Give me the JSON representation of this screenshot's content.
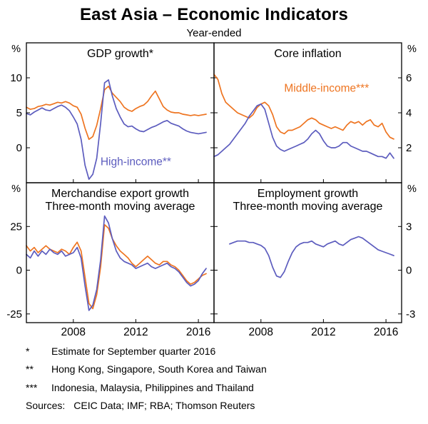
{
  "title": "East Asia – Economic Indicators",
  "subtitle": "Year-ended",
  "footnotes": [
    {
      "marker": "*",
      "text": "Estimate for September quarter 2016"
    },
    {
      "marker": "**",
      "text": "Hong Kong, Singapore, South Korea and Taiwan"
    },
    {
      "marker": "***",
      "text": "Indonesia, Malaysia, Philippines and Thailand"
    }
  ],
  "sources": {
    "label": "Sources:",
    "text": "CEIC Data; IMF; RBA; Thomson Reuters"
  },
  "colors": {
    "middle_income": "#EE7420",
    "high_income": "#5C5CBE",
    "frame": "#000000"
  },
  "chart_data": {
    "type": "line",
    "legend_position": "in-panel-annotations",
    "grid": false,
    "x": [
      2005,
      2005.25,
      2005.5,
      2005.75,
      2006,
      2006.25,
      2006.5,
      2006.75,
      2007,
      2007.25,
      2007.5,
      2007.75,
      2008,
      2008.25,
      2008.5,
      2008.75,
      2009,
      2009.25,
      2009.5,
      2009.75,
      2010,
      2010.25,
      2010.5,
      2010.75,
      2011,
      2011.25,
      2011.5,
      2011.75,
      2012,
      2012.25,
      2012.5,
      2012.75,
      2013,
      2013.25,
      2013.5,
      2013.75,
      2014,
      2014.25,
      2014.5,
      2014.75,
      2015,
      2015.25,
      2015.5,
      2015.75,
      2016,
      2016.25,
      2016.5
    ],
    "xlim": [
      2005,
      2017
    ],
    "xticks": [
      2008,
      2012,
      2016
    ],
    "panels": [
      {
        "title": "GDP growth*",
        "unit": "%",
        "axis_side": "left",
        "ylim": [
          -5,
          15
        ],
        "yticks": [
          0,
          5,
          10
        ],
        "annotation": {
          "label": "High-income**",
          "x": 2012,
          "y": -2.5,
          "color": "#5C5CBE"
        },
        "series": [
          {
            "name": "Middle-income***",
            "color": "#EE7420",
            "values": [
              5.8,
              5.5,
              5.6,
              5.9,
              6.0,
              6.2,
              6.1,
              6.3,
              6.5,
              6.4,
              6.6,
              6.4,
              6.0,
              5.8,
              4.8,
              2.8,
              1.2,
              1.6,
              3.2,
              5.6,
              8.3,
              8.8,
              7.8,
              7.2,
              6.6,
              5.8,
              5.4,
              5.2,
              5.6,
              5.9,
              6.1,
              6.6,
              7.4,
              8.1,
              7.0,
              5.9,
              5.4,
              5.1,
              5.0,
              5.0,
              4.8,
              4.7,
              4.6,
              4.7,
              4.6,
              4.7,
              4.8
            ]
          },
          {
            "name": "High-income**",
            "color": "#5C5CBE",
            "values": [
              4.9,
              4.7,
              5.1,
              5.4,
              5.7,
              5.4,
              5.3,
              5.6,
              5.9,
              6.1,
              5.8,
              5.3,
              4.4,
              3.4,
              1.2,
              -2.5,
              -4.5,
              -3.8,
              -1.5,
              3.5,
              9.3,
              9.7,
              7.4,
              5.6,
              4.4,
              3.4,
              3.0,
              3.1,
              2.7,
              2.4,
              2.3,
              2.6,
              2.9,
              3.1,
              3.4,
              3.7,
              3.9,
              3.5,
              3.3,
              3.1,
              2.7,
              2.4,
              2.2,
              2.1,
              2.0,
              2.1,
              2.2
            ]
          }
        ]
      },
      {
        "title": "Core inflation",
        "unit": "%",
        "axis_side": "right",
        "ylim": [
          0,
          8
        ],
        "yticks": [
          2,
          4,
          6
        ],
        "annotation": {
          "label": "Middle-income***",
          "x": 2012.2,
          "y": 5.2,
          "color": "#EE7420"
        },
        "series": [
          {
            "name": "Middle-income***",
            "color": "#EE7420",
            "values": [
              6.2,
              5.9,
              5.1,
              4.6,
              4.4,
              4.2,
              4.0,
              3.9,
              3.8,
              3.7,
              3.9,
              4.3,
              4.5,
              4.6,
              4.4,
              3.9,
              3.2,
              2.9,
              2.8,
              3.0,
              3.0,
              3.1,
              3.2,
              3.4,
              3.6,
              3.7,
              3.6,
              3.4,
              3.3,
              3.2,
              3.1,
              3.2,
              3.1,
              3.0,
              3.3,
              3.5,
              3.4,
              3.5,
              3.3,
              3.5,
              3.6,
              3.3,
              3.2,
              3.4,
              2.9,
              2.6,
              2.5
            ]
          },
          {
            "name": "High-income**",
            "color": "#5C5CBE",
            "values": [
              1.5,
              1.6,
              1.8,
              2.0,
              2.2,
              2.5,
              2.8,
              3.1,
              3.4,
              3.8,
              4.1,
              4.4,
              4.5,
              4.2,
              3.4,
              2.6,
              2.1,
              1.9,
              1.8,
              1.9,
              2.0,
              2.1,
              2.2,
              2.3,
              2.5,
              2.8,
              3.0,
              2.8,
              2.4,
              2.1,
              2.0,
              2.0,
              2.1,
              2.3,
              2.3,
              2.1,
              2.0,
              1.9,
              1.8,
              1.8,
              1.7,
              1.6,
              1.5,
              1.5,
              1.4,
              1.7,
              1.4
            ]
          }
        ]
      },
      {
        "title": "Merchandise export growth",
        "subtitle": "Three-month moving average",
        "unit": "%",
        "axis_side": "left",
        "ylim": [
          -30,
          50
        ],
        "yticks": [
          -25,
          0,
          25
        ],
        "series": [
          {
            "name": "Middle-income***",
            "color": "#EE7420",
            "values": [
              14,
              11,
              13,
              10,
              12,
              14,
              12,
              11,
              10,
              12,
              11,
              9,
              13,
              16,
              11,
              -4,
              -19,
              -22,
              -14,
              2,
              26,
              24,
              18,
              14,
              11,
              9,
              7,
              4,
              2,
              4,
              6,
              8,
              6,
              4,
              3,
              5,
              5,
              3,
              2,
              0,
              -3,
              -6,
              -8,
              -7,
              -5,
              -3,
              -2
            ]
          },
          {
            "name": "High-income**",
            "color": "#5C5CBE",
            "values": [
              9,
              7,
              11,
              8,
              11,
              9,
              12,
              10,
              9,
              11,
              8,
              9,
              10,
              13,
              7,
              -9,
              -23,
              -20,
              -11,
              6,
              31,
              27,
              18,
              11,
              7,
              5,
              4,
              3,
              1,
              2,
              3,
              4,
              2,
              1,
              2,
              3,
              4,
              2,
              1,
              -1,
              -4,
              -7,
              -9,
              -8,
              -6,
              -2,
              1
            ]
          }
        ]
      },
      {
        "title": "Employment growth",
        "subtitle": "Three-month moving average",
        "unit": "%",
        "axis_side": "right",
        "ylim": [
          -3.6,
          6.0
        ],
        "yticks": [
          -3,
          0,
          3
        ],
        "series": [
          {
            "name": "High-income**",
            "color": "#5C5CBE",
            "values": [
              null,
              null,
              null,
              null,
              1.8,
              1.9,
              2.0,
              2.0,
              2.0,
              1.9,
              1.9,
              1.8,
              1.7,
              1.5,
              1.0,
              0.2,
              -0.4,
              -0.5,
              -0.1,
              0.6,
              1.2,
              1.6,
              1.8,
              1.9,
              1.9,
              2.0,
              1.8,
              1.7,
              1.6,
              1.8,
              1.9,
              2.0,
              1.8,
              1.7,
              1.9,
              2.1,
              2.2,
              2.3,
              2.2,
              2.0,
              1.8,
              1.6,
              1.4,
              1.3,
              1.2,
              1.1,
              1.0
            ]
          }
        ]
      }
    ]
  }
}
